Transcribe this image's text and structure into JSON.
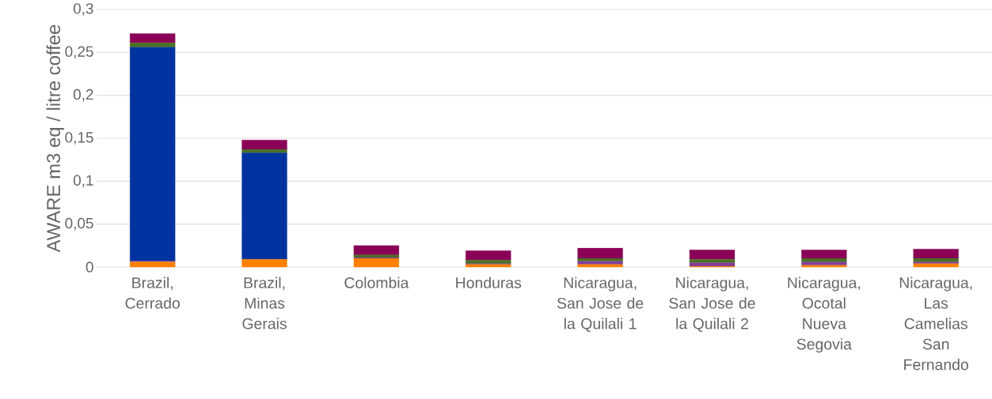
{
  "chart_data": {
    "type": "bar",
    "stacked": true,
    "ylabel": "AWARE m3 eq / litre coffee",
    "categories": [
      "Brazil, Cerrado",
      "Brazil, Minas Gerais",
      "Colombia",
      "Honduras",
      "Nicaragua, San Jose de la Quilali 1",
      "Nicaragua, San Jose de la Quilali 2",
      "Nicaragua, Ocotal Nueva Segovia",
      "Nicaragua, Las Camelias San Fernando"
    ],
    "series": [
      {
        "color": "#ff8000",
        "values": [
          0.006,
          0.009,
          0.01,
          0.003,
          0.003,
          0.001,
          0.002,
          0.004
        ]
      },
      {
        "color": "#7f3f98",
        "values": [
          0.001,
          0,
          0.001,
          0.001,
          0.004,
          0.004,
          0.004,
          0.002
        ]
      },
      {
        "color": "#0033a0",
        "values": [
          0.249,
          0.124,
          0,
          0,
          0,
          0,
          0,
          0
        ]
      },
      {
        "color": "#4a7023",
        "values": [
          0.005,
          0.004,
          0.003,
          0.004,
          0.003,
          0.004,
          0.004,
          0.004
        ]
      },
      {
        "color": "#8a0057",
        "values": [
          0.011,
          0.011,
          0.011,
          0.011,
          0.012,
          0.011,
          0.01,
          0.011
        ]
      }
    ],
    "ylim": [
      0,
      0.3
    ],
    "yticks": [
      0,
      {
        "value": 0.05,
        "label": "0,05"
      },
      {
        "value": 0.1,
        "label": "0,1"
      },
      {
        "value": 0.15,
        "label": "0,15"
      },
      {
        "value": 0.2,
        "label": "0,2"
      },
      {
        "value": 0.25,
        "label": "0,25"
      },
      {
        "value": 0.3,
        "label": "0,3"
      }
    ],
    "grid": "y"
  }
}
